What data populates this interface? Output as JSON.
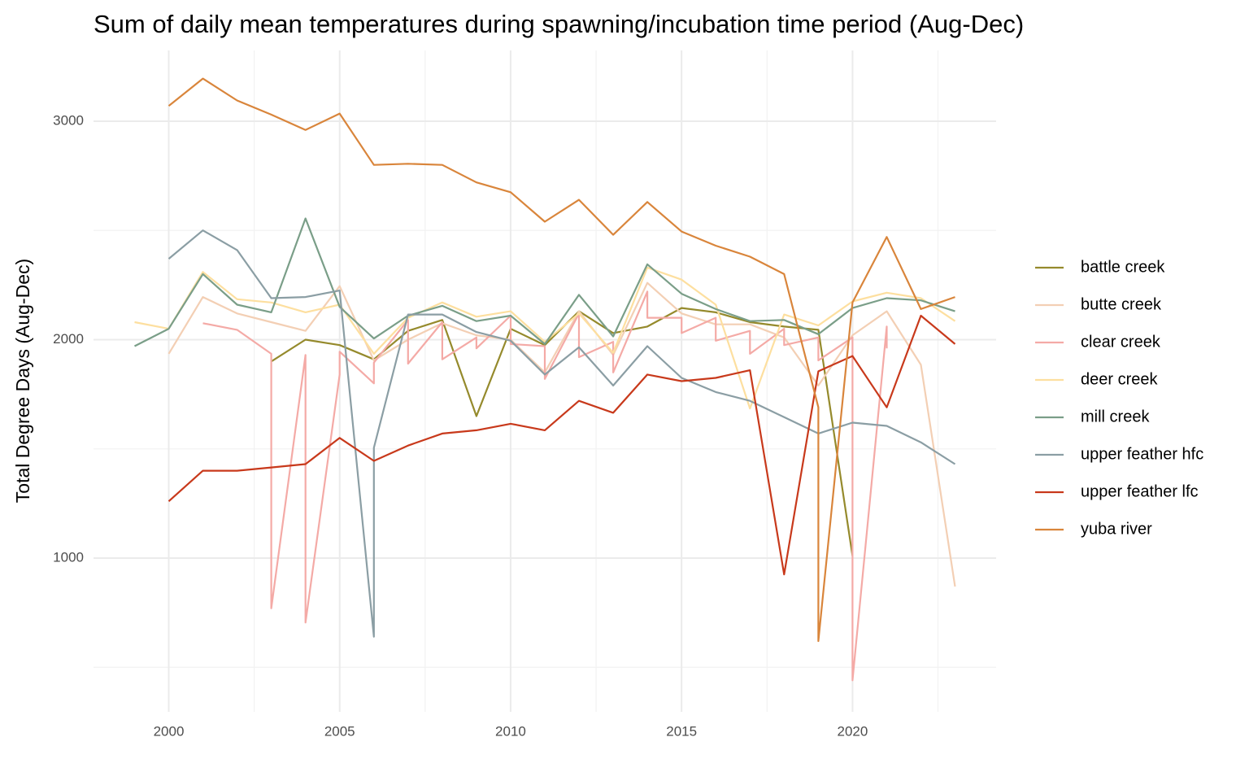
{
  "chart_data": {
    "type": "line",
    "title": "Sum of daily mean temperatures during spawning/incubation time period (Aug-Dec)",
    "y_label": "Total Degree Days (Aug-Dec)",
    "xlim": [
      1997.8,
      2024.2
    ],
    "xticks": [
      2000,
      2005,
      2010,
      2015,
      2020
    ],
    "ylim": [
      296,
      3324
    ],
    "yticks": [
      1000,
      2000,
      3000
    ],
    "x_minor_grid": [
      2002.5,
      2007.5,
      2012.5,
      2017.5,
      2022.5
    ],
    "y_minor_grid": [
      500,
      1500,
      2500
    ],
    "grid": true,
    "legend": "right",
    "series": [
      {
        "name": "battle creek",
        "color": "#958a2c",
        "x": [
          2003,
          2004,
          2005,
          2006,
          2007,
          2008,
          2009,
          2010,
          2011,
          2012,
          2013,
          2014,
          2015,
          2016,
          2017,
          2018,
          2019,
          2020
        ],
        "values": [
          1900,
          2000,
          1975,
          1910,
          2040,
          2090,
          1650,
          2050,
          1975,
          2130,
          2030,
          2060,
          2145,
          2125,
          2080,
          2060,
          2045,
          1010
        ]
      },
      {
        "name": "butte creek",
        "color": "#f3cfb4",
        "x": [
          2000,
          2001,
          2002,
          2003,
          2004,
          2005,
          2006,
          2007,
          2008,
          2009,
          2010,
          2011,
          2012,
          2013,
          2014,
          2015,
          2016,
          2017,
          2018,
          2019,
          2020,
          2021,
          2022,
          2023
        ],
        "values": [
          1935,
          2195,
          2120,
          2080,
          2040,
          2245,
          1905,
          2000,
          2075,
          2020,
          2000,
          1850,
          2130,
          1930,
          2260,
          2120,
          2070,
          2070,
          2010,
          1790,
          2020,
          2130,
          1885,
          870
        ]
      },
      {
        "name": "clear creek",
        "color": "#f4aaa6",
        "x": [
          2001,
          2002,
          2003,
          2003,
          2004,
          2004,
          2005,
          2005,
          2006,
          2006,
          2007,
          2007,
          2008,
          2008,
          2009,
          2009,
          2010,
          2010,
          2011,
          2011,
          2012,
          2012,
          2013,
          2013,
          2014,
          2014,
          2015,
          2015,
          2016,
          2016,
          2017,
          2017,
          2018,
          2018,
          2019,
          2019,
          2020,
          2020,
          2021,
          2021
        ],
        "values": [
          2075,
          2045,
          1935,
          770,
          1930,
          705,
          1840,
          1945,
          1800,
          1895,
          2090,
          1890,
          2080,
          1910,
          2010,
          1960,
          2110,
          1980,
          1970,
          1820,
          2120,
          1920,
          1990,
          1850,
          2220,
          2100,
          2100,
          2030,
          2100,
          1995,
          2040,
          1935,
          2050,
          1975,
          2010,
          1905,
          2010,
          440,
          2060,
          1960
        ]
      },
      {
        "name": "deer creek",
        "color": "#fddf9f",
        "x": [
          1999,
          2000,
          2001,
          2002,
          2003,
          2004,
          2005,
          2006,
          2007,
          2008,
          2009,
          2010,
          2011,
          2012,
          2013,
          2014,
          2015,
          2016,
          2017,
          2018,
          2019,
          2020,
          2021,
          2022,
          2023
        ],
        "values": [
          2080,
          2050,
          2310,
          2185,
          2170,
          2125,
          2160,
          1935,
          2100,
          2170,
          2105,
          2130,
          1990,
          2120,
          1940,
          2330,
          2275,
          2160,
          1685,
          2115,
          2065,
          2175,
          2215,
          2190,
          2085
        ]
      },
      {
        "name": "mill creek",
        "color": "#7a9e88",
        "x": [
          1999,
          2000,
          2001,
          2002,
          2003,
          2004,
          2005,
          2006,
          2007,
          2008,
          2009,
          2010,
          2011,
          2012,
          2013,
          2014,
          2015,
          2016,
          2017,
          2018,
          2019,
          2020,
          2021,
          2022,
          2023
        ],
        "values": [
          1970,
          2050,
          2300,
          2160,
          2125,
          2555,
          2150,
          2005,
          2110,
          2155,
          2085,
          2110,
          1980,
          2205,
          2015,
          2345,
          2210,
          2140,
          2085,
          2090,
          2025,
          2145,
          2190,
          2180,
          2130
        ]
      },
      {
        "name": "upper feather hfc",
        "color": "#8b9ea4",
        "x": [
          2000,
          2001,
          2002,
          2003,
          2004,
          2005,
          2006,
          2006,
          2007,
          2008,
          2009,
          2010,
          2011,
          2012,
          2013,
          2014,
          2015,
          2016,
          2017,
          2018,
          2019,
          2020,
          2021,
          2022,
          2023
        ],
        "values": [
          2370,
          2500,
          2410,
          2190,
          2195,
          2225,
          640,
          1505,
          2115,
          2115,
          2035,
          1995,
          1840,
          1965,
          1790,
          1970,
          1825,
          1760,
          1720,
          1645,
          1570,
          1620,
          1605,
          1530,
          1430
        ]
      },
      {
        "name": "upper feather lfc",
        "color": "#c8391b",
        "x": [
          2000,
          2001,
          2002,
          2003,
          2004,
          2005,
          2006,
          2007,
          2008,
          2009,
          2010,
          2011,
          2012,
          2013,
          2014,
          2015,
          2016,
          2017,
          2018,
          2019,
          2020,
          2021,
          2022,
          2023
        ],
        "values": [
          1260,
          1400,
          1400,
          1415,
          1430,
          1550,
          1445,
          1515,
          1570,
          1585,
          1615,
          1585,
          1720,
          1665,
          1840,
          1810,
          1825,
          1860,
          925,
          1855,
          1925,
          1690,
          2110,
          1980
        ]
      },
      {
        "name": "yuba river",
        "color": "#d9853b",
        "x": [
          2000,
          2001,
          2002,
          2003,
          2004,
          2005,
          2006,
          2007,
          2008,
          2009,
          2010,
          2011,
          2012,
          2013,
          2014,
          2015,
          2016,
          2017,
          2018,
          2019,
          2019,
          2020,
          2021,
          2022,
          2023
        ],
        "values": [
          3070,
          3195,
          3095,
          3030,
          2960,
          3035,
          2800,
          2805,
          2800,
          2720,
          2675,
          2540,
          2640,
          2480,
          2630,
          2495,
          2430,
          2380,
          2300,
          1690,
          620,
          2170,
          2470,
          2140,
          2195
        ]
      }
    ]
  }
}
